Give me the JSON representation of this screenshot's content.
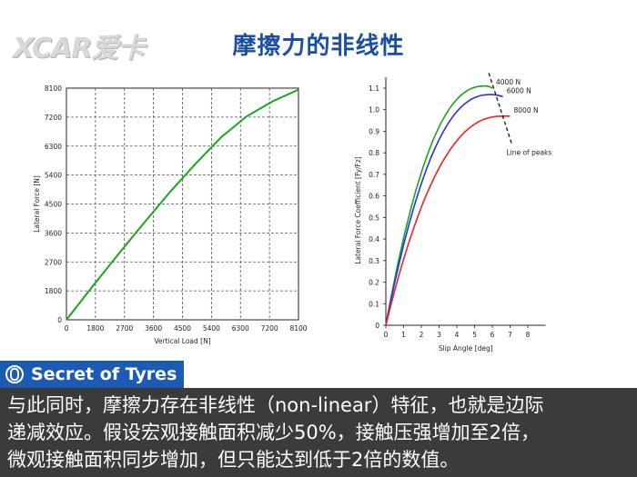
{
  "header": {
    "logo_text": "XCAR爱卡",
    "title": "摩擦力的非线性"
  },
  "badge": {
    "label": "Secret of Tyres"
  },
  "caption": {
    "lines": [
      "与此同时，摩擦力存在非线性（non-linear）特征，也就是边际",
      "递减效应。假设宏观接触面积减少50%，接触压强增加至2倍，",
      "微观接触面积同步增加，但只能达到低于2倍的数值。"
    ]
  },
  "colors": {
    "title": "#1a4fa0",
    "badge": "#1d5ab3",
    "caption_bg": "#3b3b3b"
  },
  "chart_data": [
    {
      "type": "line",
      "title": "",
      "xlabel": "Vertical Load [N]",
      "ylabel": "Lateral Force [N]",
      "xlim": [
        0,
        8100
      ],
      "ylim": [
        0,
        8100
      ],
      "x_ticks": [
        "0",
        "1800",
        "2700",
        "3600",
        "4500",
        "5400",
        "6300",
        "7200",
        "8100"
      ],
      "y_ticks": [
        "0",
        "1800",
        "2700",
        "3600",
        "4500",
        "5400",
        "6300",
        "7200",
        "8100"
      ],
      "grid": true,
      "series": [
        {
          "color": "#1aa51a",
          "x": [
            0,
            900,
            1800,
            2700,
            3600,
            4500,
            5400,
            6300,
            7200,
            8100
          ],
          "y": [
            0,
            1150,
            2280,
            3380,
            4450,
            5450,
            6380,
            7120,
            7640,
            8050
          ]
        }
      ]
    },
    {
      "type": "line",
      "title": "",
      "xlabel": "Slip Angle [deg]",
      "ylabel": "Lateral Force Coefficient [Fy/Fz]",
      "xlim": [
        0,
        9
      ],
      "ylim": [
        0,
        1.15
      ],
      "x_ticks": [
        "0",
        "1",
        "2",
        "3",
        "4",
        "5",
        "6",
        "7",
        "8"
      ],
      "y_ticks": [
        "0",
        "0.1",
        "0.2",
        "0.3",
        "0.4",
        "0.5",
        "0.6",
        "0.7",
        "0.8",
        "0.9",
        "1.0",
        "1.1"
      ],
      "grid": false,
      "series": [
        {
          "name": "4000 N",
          "color": "#1aa51a",
          "peak_x": 5.6,
          "peak_y": 1.11,
          "end_x": 6.0,
          "end_y": 1.1
        },
        {
          "name": "6000 N",
          "color": "#2233ee",
          "peak_x": 5.9,
          "peak_y": 1.07,
          "end_x": 6.6,
          "end_y": 1.06
        },
        {
          "name": "8000 N",
          "color": "#ee2222",
          "peak_x": 6.6,
          "peak_y": 0.97,
          "end_x": 7.0,
          "end_y": 0.97
        }
      ],
      "annotation": {
        "text": "Line of peaks",
        "from": [
          5.8,
          1.17
        ],
        "to": [
          7.1,
          0.84
        ]
      }
    }
  ]
}
